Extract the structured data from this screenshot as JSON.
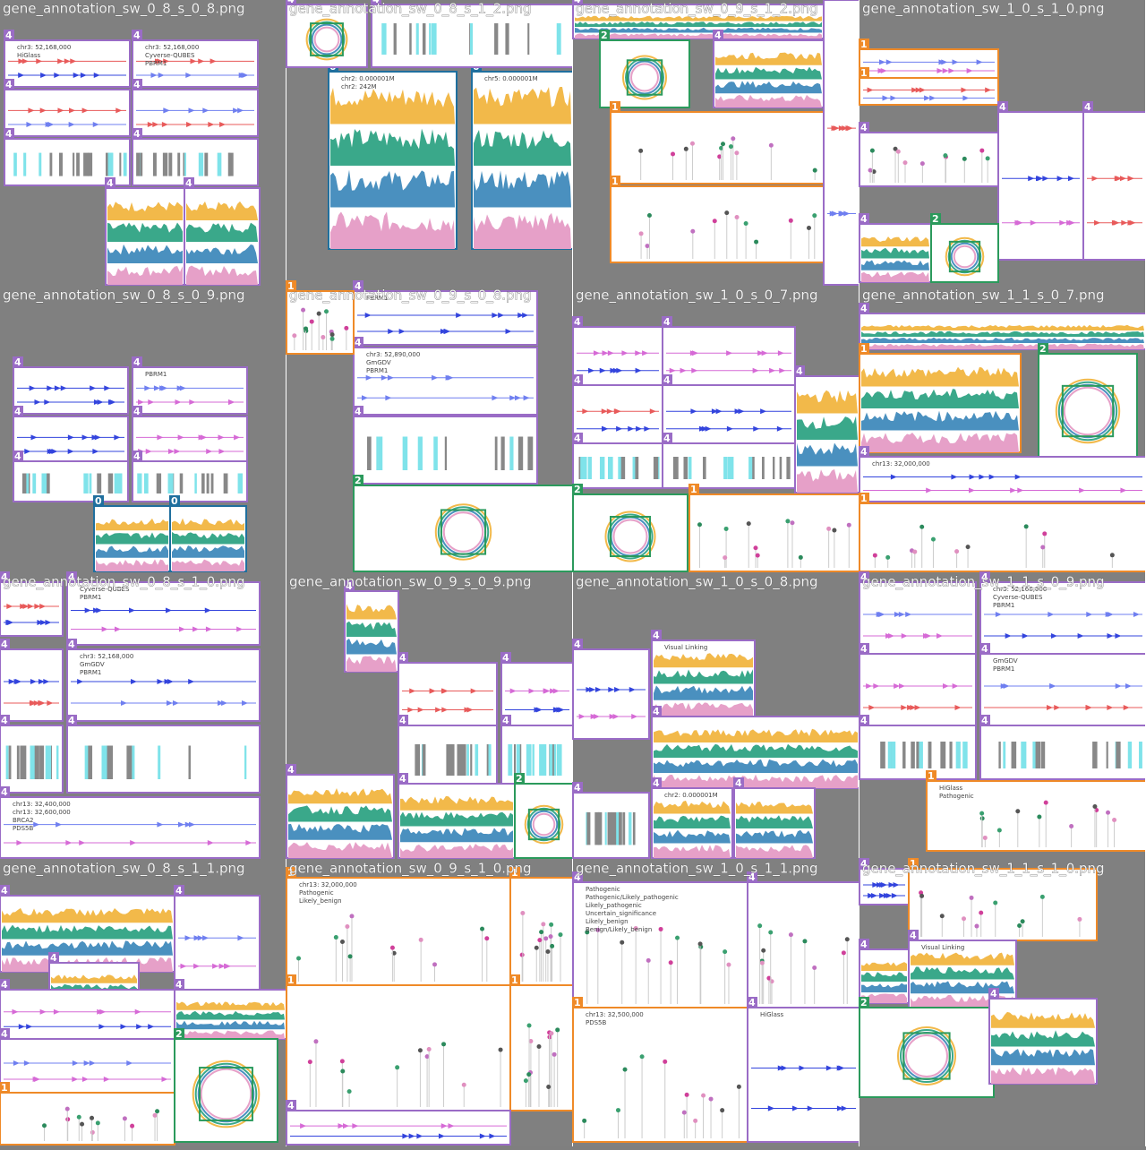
{
  "tiles": [
    {
      "title": "gene_annotation_sw_0_8_s_0_8.png",
      "panels": [
        {
          "badge": "4",
          "kind": "genes",
          "labels": [
            "chr3: 52,168,000",
            "HiGlass"
          ]
        },
        {
          "badge": "4",
          "kind": "genes",
          "labels": [
            "chr3: 52,168,000",
            "Cyverse-QUBES",
            "PBRM1"
          ]
        },
        {
          "badge": "4",
          "kind": "genes",
          "labels": []
        },
        {
          "badge": "4",
          "kind": "genes",
          "labels": []
        },
        {
          "badge": "4",
          "kind": "bars",
          "labels": []
        },
        {
          "badge": "4",
          "kind": "bars",
          "labels": []
        },
        {
          "badge": "4",
          "kind": "area",
          "labels": []
        },
        {
          "badge": "4",
          "kind": "area",
          "labels": []
        }
      ]
    },
    {
      "title": "gene_annotation_sw_0_8_s_1_2.png",
      "panels": [
        {
          "badge": "0",
          "kind": "area",
          "labels": [
            "chr2: 0.000001M",
            "chr2: 242M"
          ]
        },
        {
          "badge": "0",
          "kind": "area",
          "labels": [
            "chr5: 0.000001M"
          ]
        },
        {
          "badge": "4",
          "kind": "circular",
          "labels": []
        },
        {
          "badge": "4",
          "kind": "bars",
          "labels": []
        }
      ]
    },
    {
      "title": "gene_annotation_sw_0_9_s_1_2.png",
      "panels": [
        {
          "badge": "4",
          "kind": "area",
          "labels": []
        },
        {
          "badge": "2",
          "kind": "circular",
          "labels": []
        },
        {
          "badge": "4",
          "kind": "area",
          "labels": []
        },
        {
          "badge": "1",
          "kind": "lollipop",
          "labels": []
        },
        {
          "badge": "1",
          "kind": "lollipop",
          "labels": []
        },
        {
          "badge": "4",
          "kind": "genes",
          "labels": []
        }
      ]
    },
    {
      "title": "gene_annotation_sw_1_0_s_1_0.png",
      "panels": [
        {
          "badge": "1",
          "kind": "genes",
          "labels": []
        },
        {
          "badge": "1",
          "kind": "genes",
          "labels": []
        },
        {
          "badge": "4",
          "kind": "lollipop",
          "labels": []
        },
        {
          "badge": "4",
          "kind": "genes",
          "labels": []
        },
        {
          "badge": "4",
          "kind": "genes",
          "labels": []
        },
        {
          "badge": "4",
          "kind": "area",
          "labels": []
        },
        {
          "badge": "2",
          "kind": "circular",
          "labels": []
        }
      ]
    },
    {
      "title": "gene_annotation_sw_0_8_s_0_9.png",
      "panels": [
        {
          "badge": "4",
          "kind": "genes",
          "labels": []
        },
        {
          "badge": "4",
          "kind": "genes",
          "labels": [
            "PBRM1"
          ]
        },
        {
          "badge": "4",
          "kind": "genes",
          "labels": []
        },
        {
          "badge": "4",
          "kind": "genes",
          "labels": []
        },
        {
          "badge": "4",
          "kind": "bars",
          "labels": []
        },
        {
          "badge": "4",
          "kind": "bars",
          "labels": []
        },
        {
          "badge": "0",
          "kind": "area",
          "labels": []
        },
        {
          "badge": "0",
          "kind": "area",
          "labels": []
        }
      ]
    },
    {
      "title": "gene_annotation_sw_0_9_s_0_8.png",
      "panels": [
        {
          "badge": "4",
          "kind": "genes",
          "labels": [
            "PBRM1"
          ]
        },
        {
          "badge": "4",
          "kind": "genes",
          "labels": [
            "chr3: 52,890,000",
            "GmGDV",
            "PBRM1"
          ]
        },
        {
          "badge": "4",
          "kind": "bars",
          "labels": []
        },
        {
          "badge": "1",
          "kind": "lollipop",
          "labels": []
        },
        {
          "badge": "2",
          "kind": "circular",
          "labels": []
        }
      ]
    },
    {
      "title": "gene_annotation_sw_1_0_s_0_7.png",
      "panels": [
        {
          "badge": "4",
          "kind": "genes",
          "labels": []
        },
        {
          "badge": "4",
          "kind": "genes",
          "labels": []
        },
        {
          "badge": "4",
          "kind": "genes",
          "labels": []
        },
        {
          "badge": "4",
          "kind": "genes",
          "labels": []
        },
        {
          "badge": "4",
          "kind": "bars",
          "labels": []
        },
        {
          "badge": "4",
          "kind": "bars",
          "labels": []
        },
        {
          "badge": "4",
          "kind": "area",
          "labels": []
        },
        {
          "badge": "1",
          "kind": "lollipop",
          "labels": []
        },
        {
          "badge": "2",
          "kind": "circular",
          "labels": []
        }
      ]
    },
    {
      "title": "gene_annotation_sw_1_1_s_0_7.png",
      "panels": [
        {
          "badge": "4",
          "kind": "area",
          "labels": []
        },
        {
          "badge": "1",
          "kind": "area",
          "labels": []
        },
        {
          "badge": "2",
          "kind": "circular",
          "labels": []
        },
        {
          "badge": "4",
          "kind": "genes",
          "labels": [
            "chr13: 32,000,000"
          ]
        },
        {
          "badge": "1",
          "kind": "lollipop",
          "labels": []
        }
      ]
    },
    {
      "title": "gene_annotation_sw_0_8_s_1_0.png",
      "panels": [
        {
          "badge": "4",
          "kind": "genes",
          "labels": []
        },
        {
          "badge": "4",
          "kind": "genes",
          "labels": [
            "Cyverse-QUBES",
            "PBRM1"
          ]
        },
        {
          "badge": "4",
          "kind": "genes",
          "labels": []
        },
        {
          "badge": "4",
          "kind": "genes",
          "labels": [
            "chr3: 52,168,000",
            "GmGDV",
            "PBRM1"
          ]
        },
        {
          "badge": "4",
          "kind": "bars",
          "labels": []
        },
        {
          "badge": "4",
          "kind": "bars",
          "labels": []
        },
        {
          "badge": "4",
          "kind": "genes",
          "labels": [
            "chr13: 32,400,000",
            "chr13: 32,600,000",
            "BRCA2",
            "PDS5B"
          ]
        }
      ]
    },
    {
      "title": "gene_annotation_sw_0_9_s_0_9.png",
      "panels": [
        {
          "badge": "4",
          "kind": "area",
          "labels": []
        },
        {
          "badge": "4",
          "kind": "genes",
          "labels": []
        },
        {
          "badge": "4",
          "kind": "genes",
          "labels": []
        },
        {
          "badge": "4",
          "kind": "bars",
          "labels": []
        },
        {
          "badge": "4",
          "kind": "bars",
          "labels": []
        },
        {
          "badge": "4",
          "kind": "area",
          "labels": []
        },
        {
          "badge": "4",
          "kind": "area",
          "labels": []
        },
        {
          "badge": "2",
          "kind": "circular",
          "labels": []
        }
      ]
    },
    {
      "title": "gene_annotation_sw_1_0_s_0_8.png",
      "panels": [
        {
          "badge": "4",
          "kind": "genes",
          "labels": []
        },
        {
          "badge": "4",
          "kind": "area",
          "labels": [
            "Visual Linking"
          ]
        },
        {
          "badge": "4",
          "kind": "area",
          "labels": []
        },
        {
          "badge": "4",
          "kind": "bars",
          "labels": []
        },
        {
          "badge": "4",
          "kind": "area",
          "labels": [
            "chr2: 0.000001M"
          ]
        },
        {
          "badge": "4",
          "kind": "area",
          "labels": []
        }
      ]
    },
    {
      "title": "gene_annotation_sw_1_1_s_0_9.png",
      "panels": [
        {
          "badge": "4",
          "kind": "genes",
          "labels": []
        },
        {
          "badge": "4",
          "kind": "genes",
          "labels": [
            "chr3: 52,168,000",
            "Cyverse-QUBES",
            "PBRM1"
          ]
        },
        {
          "badge": "4",
          "kind": "genes",
          "labels": []
        },
        {
          "badge": "4",
          "kind": "genes",
          "labels": [
            "GmGDV",
            "PBRM1"
          ]
        },
        {
          "badge": "4",
          "kind": "bars",
          "labels": []
        },
        {
          "badge": "4",
          "kind": "bars",
          "labels": []
        },
        {
          "badge": "1",
          "kind": "lollipop",
          "labels": [
            "HiGlass",
            "Pathogenic"
          ]
        }
      ]
    },
    {
      "title": "gene_annotation_sw_0_8_s_1_1.png",
      "panels": [
        {
          "badge": "4",
          "kind": "area",
          "labels": []
        },
        {
          "badge": "4",
          "kind": "genes",
          "labels": []
        },
        {
          "badge": "4",
          "kind": "area",
          "labels": []
        },
        {
          "badge": "4",
          "kind": "genes",
          "labels": []
        },
        {
          "badge": "4",
          "kind": "area",
          "labels": []
        },
        {
          "badge": "4",
          "kind": "genes",
          "labels": []
        },
        {
          "badge": "1",
          "kind": "lollipop",
          "labels": []
        },
        {
          "badge": "2",
          "kind": "circular",
          "labels": []
        }
      ]
    },
    {
      "title": "gene_annotation_sw_0_9_s_1_0.png",
      "panels": [
        {
          "badge": "1",
          "kind": "lollipop",
          "labels": [
            "chr13: 32,000,000",
            "Pathogenic",
            "Likely_benign"
          ]
        },
        {
          "badge": "1",
          "kind": "lollipop",
          "labels": []
        },
        {
          "badge": "1",
          "kind": "lollipop",
          "labels": []
        },
        {
          "badge": "1",
          "kind": "lollipop",
          "labels": []
        },
        {
          "badge": "4",
          "kind": "genes",
          "labels": []
        }
      ]
    },
    {
      "title": "gene_annotation_sw_1_0_s_1_1.png",
      "panels": [
        {
          "badge": "4",
          "kind": "lollipop",
          "labels": [
            "Pathogenic",
            "Pathogenic/Likely_pathogenic",
            "Likely_pathogenic",
            "Uncertain_significance",
            "Likely_benign",
            "Benign/Likely_benign"
          ]
        },
        {
          "badge": "4",
          "kind": "lollipop",
          "labels": []
        },
        {
          "badge": "1",
          "kind": "lollipop",
          "labels": [
            "chr13: 32,500,000",
            "PDS5B"
          ]
        },
        {
          "badge": "4",
          "kind": "genes",
          "labels": [
            "HiGlass"
          ]
        }
      ]
    },
    {
      "title": "gene_annotation_sw_1_1_s_1_0.png",
      "panels": [
        {
          "badge": "4",
          "kind": "genes",
          "labels": []
        },
        {
          "badge": "1",
          "kind": "lollipop",
          "labels": []
        },
        {
          "badge": "4",
          "kind": "area",
          "labels": [
            "Visual Linking"
          ]
        },
        {
          "badge": "4",
          "kind": "area",
          "labels": []
        },
        {
          "badge": "2",
          "kind": "circular",
          "labels": []
        },
        {
          "badge": "4",
          "kind": "area",
          "labels": []
        }
      ]
    }
  ]
}
